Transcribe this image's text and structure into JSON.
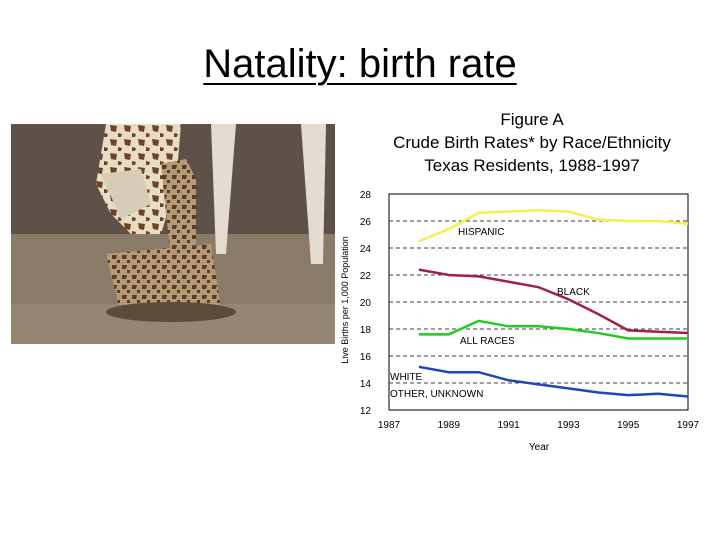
{
  "slide": {
    "title": "Natality: birth rate"
  },
  "photo": {
    "icon": "giraffe-mother-and-calf-photo"
  },
  "chart_data": {
    "type": "line",
    "title": "Figure A",
    "subtitle": "Crude Birth Rates* by Race/Ethnicity",
    "subtitle2": "Texas Residents, 1988-1997",
    "xlabel": "Year",
    "ylabel": "Live Births per 1,000 Population",
    "xlim": [
      1987,
      1997
    ],
    "ylim": [
      12,
      28
    ],
    "xticks": [
      "1987",
      "1989",
      "1991",
      "1993",
      "1995",
      "1997"
    ],
    "yticks": [
      "12",
      "14",
      "16",
      "18",
      "20",
      "22",
      "24",
      "26",
      "28"
    ],
    "grid": "horizontal dashed",
    "x": [
      1988,
      1989,
      1990,
      1991,
      1992,
      1993,
      1994,
      1995,
      1996,
      1997
    ],
    "series": [
      {
        "name": "HISPANIC",
        "color": "#f2f24a",
        "values": [
          24.5,
          25.4,
          26.6,
          26.7,
          26.8,
          26.7,
          26.1,
          26.0,
          26.0,
          25.8
        ]
      },
      {
        "name": "BLACK",
        "color": "#a0204a",
        "values": [
          22.4,
          22.0,
          21.9,
          21.5,
          21.1,
          20.2,
          19.1,
          17.9,
          17.8,
          17.7
        ]
      },
      {
        "name": "ALL RACES",
        "color": "#22cc22",
        "values": [
          17.6,
          17.6,
          18.6,
          18.2,
          18.2,
          18.0,
          17.7,
          17.3,
          17.3,
          17.3
        ]
      },
      {
        "name": "WHITE, OTHER, UNKNOWN",
        "color": "#2244bb",
        "values": [
          15.2,
          14.8,
          14.8,
          14.2,
          13.9,
          13.6,
          13.3,
          13.1,
          13.2,
          13.0
        ]
      }
    ],
    "labels": {
      "hispanic": "HISPANIC",
      "black": "BLACK",
      "all_races": "ALL RACES",
      "white_line1": "WHITE",
      "white_line2": "OTHER, UNKNOWN"
    }
  }
}
